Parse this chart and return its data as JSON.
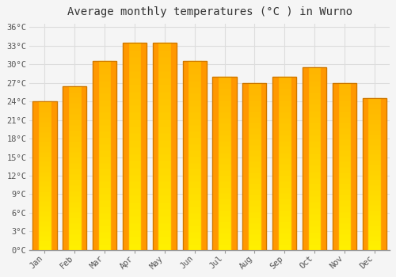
{
  "title": "Average monthly temperatures (°C ) in Wurno",
  "months": [
    "Jan",
    "Feb",
    "Mar",
    "Apr",
    "May",
    "Jun",
    "Jul",
    "Aug",
    "Sep",
    "Oct",
    "Nov",
    "Dec"
  ],
  "values": [
    24.0,
    26.5,
    30.5,
    33.5,
    33.5,
    30.5,
    28.0,
    27.0,
    28.0,
    29.5,
    27.0,
    24.5
  ],
  "bar_color_top": "#FFD966",
  "bar_color_mid": "#FFAA00",
  "bar_color_bottom": "#FF8C00",
  "bar_color_edge": "#CC7700",
  "background_color": "#F5F5F5",
  "plot_bg_color": "#F5F5F5",
  "grid_color": "#DDDDDD",
  "ytick_max": 36,
  "ytick_step": 3,
  "title_fontsize": 10,
  "tick_fontsize": 7.5,
  "font_family": "monospace"
}
